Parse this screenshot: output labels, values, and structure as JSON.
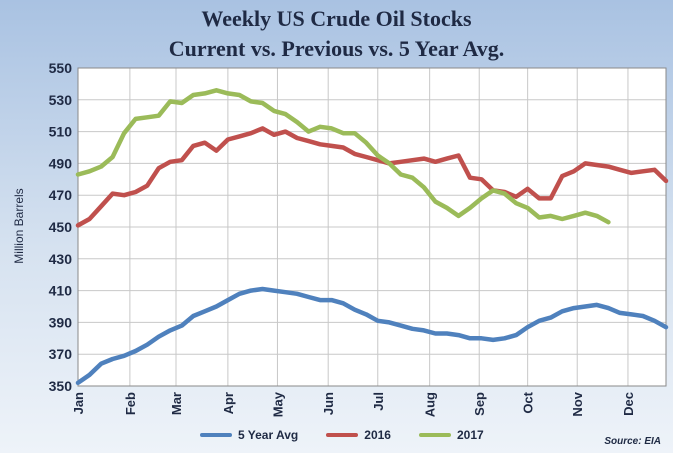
{
  "chart_data": {
    "type": "line",
    "title_line1": "Weekly US Crude Oil Stocks",
    "title_line2": "Current vs. Previous vs. 5 Year Avg.",
    "ylabel": "Million Barrels",
    "source": "Source: EIA",
    "ylim": [
      350,
      550
    ],
    "yticks": [
      350,
      370,
      390,
      410,
      430,
      450,
      470,
      490,
      510,
      530,
      550
    ],
    "xlim": [
      1,
      52
    ],
    "months": [
      {
        "label": "Jan",
        "week": 1
      },
      {
        "label": "Feb",
        "week": 5.5
      },
      {
        "label": "Mar",
        "week": 9.5
      },
      {
        "label": "Apr",
        "week": 14
      },
      {
        "label": "May",
        "week": 18.3
      },
      {
        "label": "Jun",
        "week": 22.7
      },
      {
        "label": "Jul",
        "week": 27
      },
      {
        "label": "Aug",
        "week": 31.5
      },
      {
        "label": "Sep",
        "week": 35.8
      },
      {
        "label": "Oct",
        "week": 40
      },
      {
        "label": "Nov",
        "week": 44.3
      },
      {
        "label": "Dec",
        "week": 48.7
      }
    ],
    "grid": true,
    "legend_position": "bottom",
    "colors": {
      "five_year_avg": "#4f81bd",
      "y2016": "#c0504d",
      "y2017": "#9bbb59",
      "background": "#b9cde4",
      "title": "#1f2a44"
    },
    "series": [
      {
        "name": "5 Year Avg",
        "key": "five_year_avg",
        "x": [
          1,
          2,
          3,
          4,
          5,
          6,
          7,
          8,
          9,
          10,
          11,
          12,
          13,
          14,
          15,
          16,
          17,
          18,
          19,
          20,
          21,
          22,
          23,
          24,
          25,
          26,
          27,
          28,
          29,
          30,
          31,
          32,
          33,
          34,
          35,
          36,
          37,
          38,
          39,
          40,
          41,
          42,
          43,
          44,
          45,
          46,
          47,
          48,
          49,
          50,
          51,
          52
        ],
        "values": [
          352,
          357,
          364,
          367,
          369,
          372,
          376,
          381,
          385,
          388,
          394,
          397,
          400,
          404,
          408,
          410,
          411,
          410,
          409,
          408,
          406,
          404,
          404,
          402,
          398,
          395,
          391,
          390,
          388,
          386,
          385,
          383,
          383,
          382,
          380,
          380,
          379,
          380,
          382,
          387,
          391,
          393,
          397,
          399,
          400,
          401,
          399,
          396,
          395,
          394,
          391,
          387
        ]
      },
      {
        "name": "2016",
        "key": "y2016",
        "x": [
          1,
          2,
          3,
          4,
          5,
          6,
          7,
          8,
          9,
          10,
          11,
          12,
          13,
          14,
          15,
          16,
          17,
          18,
          19,
          20,
          21,
          22,
          23,
          24,
          25,
          26,
          27,
          28,
          29,
          30,
          31,
          32,
          33,
          34,
          35,
          36,
          37,
          38,
          39,
          40,
          41,
          42,
          43,
          44,
          45,
          46,
          47,
          48,
          49,
          50,
          51,
          52
        ],
        "values": [
          451,
          455,
          463,
          471,
          470,
          472,
          476,
          487,
          491,
          492,
          501,
          503,
          498,
          505,
          507,
          509,
          512,
          508,
          510,
          506,
          504,
          502,
          501,
          500,
          496,
          494,
          492,
          490,
          491,
          492,
          493,
          491,
          493,
          495,
          481,
          480,
          473,
          472,
          469,
          474,
          468,
          468,
          482,
          485,
          490,
          489,
          488,
          486,
          484,
          485,
          486,
          479
        ]
      },
      {
        "name": "2017",
        "key": "y2017",
        "x": [
          1,
          2,
          3,
          4,
          5,
          6,
          7,
          8,
          9,
          10,
          11,
          12,
          13,
          14,
          15,
          16,
          17,
          18,
          19,
          20,
          21,
          22,
          23,
          24,
          25,
          26,
          27,
          28,
          29,
          30,
          31,
          32,
          33,
          34,
          35,
          36,
          37,
          38,
          39,
          40,
          41,
          42,
          43,
          44,
          45,
          46,
          47
        ],
        "values": [
          483,
          485,
          488,
          494,
          509,
          518,
          519,
          520,
          529,
          528,
          533,
          534,
          536,
          534,
          533,
          529,
          528,
          523,
          521,
          516,
          510,
          513,
          512,
          509,
          509,
          503,
          495,
          490,
          483,
          481,
          475,
          466,
          462,
          457,
          462,
          468,
          473,
          471,
          465,
          462,
          456,
          457,
          455,
          457,
          459,
          457,
          453
        ]
      }
    ]
  }
}
